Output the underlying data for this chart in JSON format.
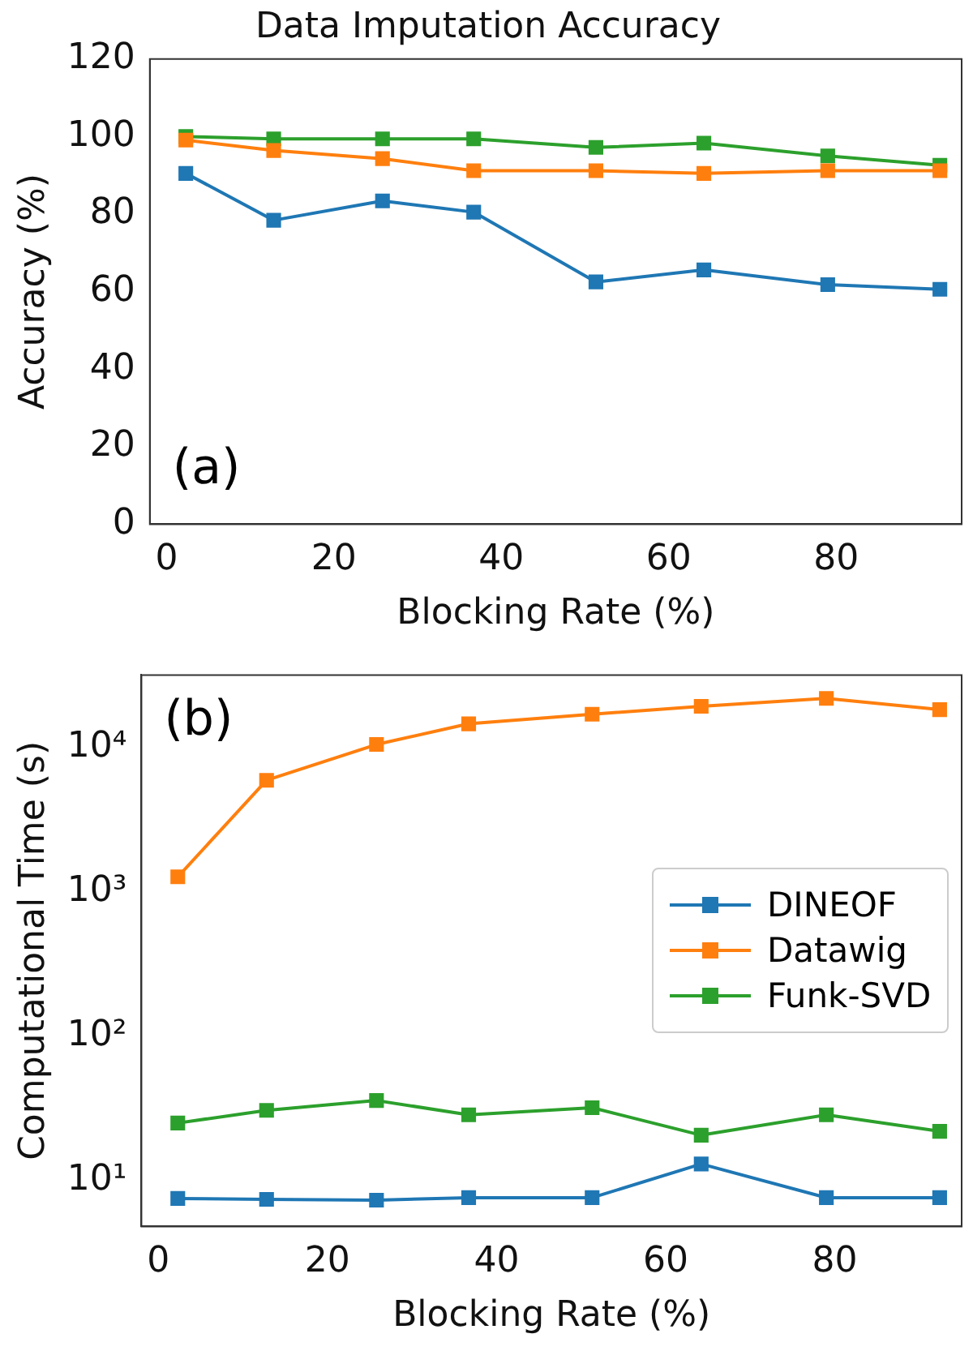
{
  "chart_data": [
    {
      "type": "line",
      "title": "Data Imputation Accuracy",
      "xlabel": "Blocking Rate (%)",
      "ylabel": "Accuracy (%)",
      "x": [
        2.3,
        12.8,
        25.8,
        36.7,
        51.3,
        64.2,
        79,
        92.4
      ],
      "series": [
        {
          "color": "#1f77b4",
          "values": [
            90.5,
            78.4,
            83.4,
            80.5,
            62.5,
            65.6,
            61.8,
            60.6
          ]
        },
        {
          "color": "#ff7f0e",
          "values": [
            99.1,
            96.4,
            94.3,
            91.2,
            91.2,
            90.5,
            91.2,
            91.2
          ]
        },
        {
          "color": "#2ca02c",
          "values": [
            100,
            99.4,
            99.4,
            99.4,
            97.2,
            98.3,
            95.0,
            92.6
          ]
        }
      ],
      "xlim": [
        -2,
        95
      ],
      "xticks": [
        0,
        20,
        40,
        60,
        80
      ],
      "ylim": [
        0,
        120
      ],
      "yticks": [
        0,
        20,
        40,
        60,
        80,
        100,
        120
      ],
      "annotations": [
        "(a)"
      ],
      "marker": "square",
      "grid": false,
      "legend": false
    },
    {
      "type": "line",
      "xlabel": "Blocking Rate (%)",
      "ylabel": "Computational Time (s)",
      "x": [
        2.3,
        12.8,
        25.8,
        36.7,
        51.3,
        64.2,
        79,
        92.4
      ],
      "series": [
        {
          "name": "DINEOF",
          "color": "#1f77b4",
          "values": [
            7.5,
            7.4,
            7.3,
            7.6,
            7.6,
            13,
            7.6,
            7.6
          ]
        },
        {
          "name": "Datawig",
          "color": "#ff7f0e",
          "values": [
            1270,
            5930,
            10500,
            14600,
            17000,
            19300,
            21900,
            18300
          ]
        },
        {
          "name": "Funk-SVD",
          "color": "#2ca02c",
          "values": [
            25,
            30.6,
            35.8,
            28.5,
            31.9,
            20.6,
            28.5,
            21.9
          ]
        }
      ],
      "xlim": [
        -2,
        95
      ],
      "xticks": [
        0,
        20,
        40,
        60,
        80
      ],
      "ylim": [
        4.8,
        31800
      ],
      "log": "y",
      "yticks": [
        {
          "value": 10,
          "label": "10¹"
        },
        {
          "value": 100,
          "label": "10²"
        },
        {
          "value": 1000,
          "label": "10³"
        },
        {
          "value": 10000,
          "label": "10⁴"
        }
      ],
      "annotations": [
        "(b)"
      ],
      "marker": "square",
      "grid": false,
      "legend": "right"
    }
  ]
}
